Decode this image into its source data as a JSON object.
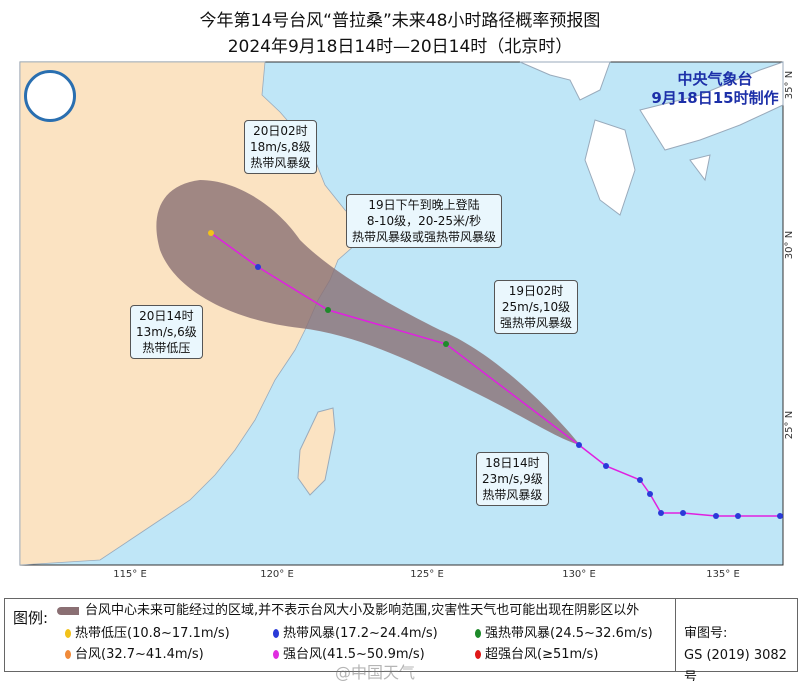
{
  "title": "今年第14号台风“普拉桑”未来48小时路径概率预报图",
  "subtitle": "2024年9月18日14时—20日14时（北京时）",
  "agency": {
    "name": "中央气象台",
    "issued": "9月18日15时制作"
  },
  "axes": {
    "lon": [
      "115° E",
      "120° E",
      "125° E",
      "130° E",
      "135° E"
    ],
    "lat": [
      "35° N",
      "30° N",
      "25° N"
    ]
  },
  "annotations": [
    {
      "time": "20日02时",
      "wind": "18m/s,8级",
      "level": "热带风暴级"
    },
    {
      "time": "19日下午到晚上登陆",
      "wind": "8-10级，20-25米/秒",
      "level": "热带风暴级或强热带风暴级"
    },
    {
      "time": "19日02时",
      "wind": "25m/s,10级",
      "level": "强热带风暴级"
    },
    {
      "time": "20日14时",
      "wind": "13m/s,6级",
      "level": "热带低压"
    },
    {
      "time": "18日14时",
      "wind": "23m/s,9级",
      "level": "热带风暴级"
    }
  ],
  "legend": {
    "label": "图例:",
    "cone": "台风中心未来可能经过的区域,并不表示台风大小及影响范围,灾害性天气也可能出现在阴影区以外",
    "items": [
      {
        "label": "热带低压(10.8~17.1m/s)",
        "color": "#f2c21a"
      },
      {
        "label": "热带风暴(17.2~24.4m/s)",
        "color": "#2a3ad8"
      },
      {
        "label": "强热带风暴(24.5~32.6m/s)",
        "color": "#1e8a2a"
      },
      {
        "label": "台风(32.7~41.4m/s)",
        "color": "#f08a3a"
      },
      {
        "label": "强台风(41.5~50.9m/s)",
        "color": "#e02de0"
      },
      {
        "label": "超强台风(≥51m/s)",
        "color": "#e01818"
      }
    ],
    "approval_label": "审图号:",
    "approval_no": "GS (2019) 3082号"
  },
  "watermark": "@中国天气",
  "colors": {
    "sea": "#bfe6f7",
    "land": "#fbe3c2",
    "japan": "#ffffff",
    "cone": "#8a6f73",
    "track": "#e020e0"
  }
}
